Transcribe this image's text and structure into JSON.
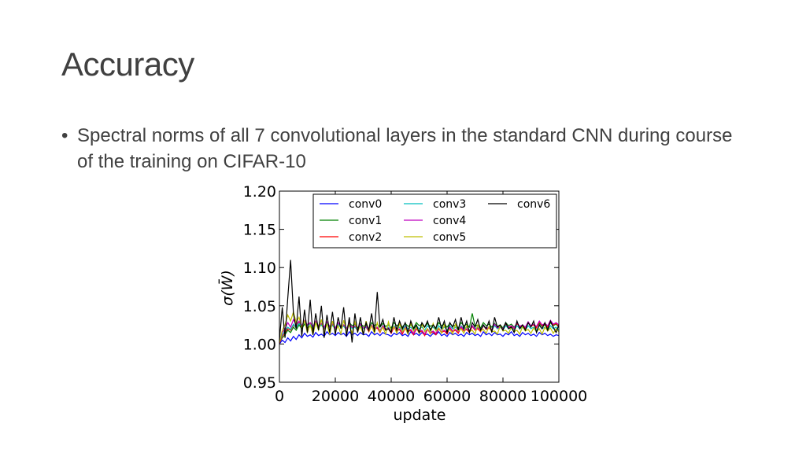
{
  "slide": {
    "title": "Accuracy",
    "bullet": "Spectral norms of all 7 convolutional layers in the standard CNN during course of the training on CIFAR-10"
  },
  "chart_data": {
    "type": "line",
    "xlabel": "update",
    "ylabel": "σ(W̄)",
    "xlim": [
      0,
      100000
    ],
    "ylim": [
      0.95,
      1.2
    ],
    "xticks": [
      "0",
      "20000",
      "40000",
      "60000",
      "80000",
      "100000"
    ],
    "yticks": [
      "0.95",
      "1.00",
      "1.05",
      "1.10",
      "1.15",
      "1.20"
    ],
    "grid": false,
    "legend_position": "top",
    "legend_columns": 3,
    "x": [
      0,
      1000,
      2000,
      3000,
      4000,
      5000,
      6000,
      7000,
      8000,
      9000,
      10000,
      11000,
      12000,
      13000,
      14000,
      15000,
      16000,
      17000,
      18000,
      19000,
      20000,
      21000,
      22000,
      23000,
      24000,
      25000,
      26000,
      27000,
      28000,
      29000,
      30000,
      31000,
      32000,
      33000,
      34000,
      35000,
      36000,
      37000,
      38000,
      39000,
      40000,
      41000,
      42000,
      43000,
      44000,
      45000,
      46000,
      47000,
      48000,
      49000,
      50000,
      51000,
      52000,
      53000,
      54000,
      55000,
      56000,
      57000,
      58000,
      59000,
      60000,
      61000,
      62000,
      63000,
      64000,
      65000,
      66000,
      67000,
      68000,
      69000,
      70000,
      71000,
      72000,
      73000,
      74000,
      75000,
      76000,
      77000,
      78000,
      79000,
      80000,
      81000,
      82000,
      83000,
      84000,
      85000,
      86000,
      87000,
      88000,
      89000,
      90000,
      91000,
      92000,
      93000,
      94000,
      95000,
      96000,
      97000,
      98000,
      99000,
      100000
    ],
    "series": [
      {
        "name": "conv0",
        "color": "#0000ff",
        "values": [
          1.0,
          1.005,
          1.002,
          1.008,
          1.004,
          1.01,
          1.006,
          1.012,
          1.008,
          1.014,
          1.01,
          1.012,
          1.009,
          1.015,
          1.011,
          1.013,
          1.01,
          1.016,
          1.012,
          1.014,
          1.011,
          1.015,
          1.012,
          1.014,
          1.01,
          1.016,
          1.012,
          1.014,
          1.011,
          1.015,
          1.012,
          1.013,
          1.01,
          1.016,
          1.012,
          1.014,
          1.011,
          1.015,
          1.013,
          1.012,
          1.01,
          1.014,
          1.012,
          1.015,
          1.011,
          1.013,
          1.01,
          1.016,
          1.012,
          1.014,
          1.011,
          1.015,
          1.012,
          1.013,
          1.01,
          1.014,
          1.012,
          1.016,
          1.011,
          1.013,
          1.01,
          1.015,
          1.012,
          1.014,
          1.011,
          1.013,
          1.01,
          1.015,
          1.012,
          1.014,
          1.011,
          1.013,
          1.01,
          1.016,
          1.012,
          1.014,
          1.011,
          1.015,
          1.012,
          1.013,
          1.01,
          1.014,
          1.012,
          1.016,
          1.011,
          1.013,
          1.01,
          1.015,
          1.012,
          1.014,
          1.011,
          1.013,
          1.01,
          1.015,
          1.012,
          1.014,
          1.011,
          1.013,
          1.01,
          1.012,
          1.011
        ]
      },
      {
        "name": "conv1",
        "color": "#008000",
        "values": [
          1.002,
          1.008,
          1.012,
          1.018,
          1.015,
          1.022,
          1.018,
          1.025,
          1.02,
          1.026,
          1.021,
          1.024,
          1.019,
          1.027,
          1.022,
          1.025,
          1.02,
          1.028,
          1.023,
          1.026,
          1.021,
          1.027,
          1.023,
          1.025,
          1.02,
          1.028,
          1.024,
          1.026,
          1.021,
          1.027,
          1.023,
          1.025,
          1.02,
          1.028,
          1.024,
          1.026,
          1.022,
          1.027,
          1.023,
          1.025,
          1.021,
          1.028,
          1.024,
          1.026,
          1.022,
          1.027,
          1.023,
          1.025,
          1.021,
          1.028,
          1.024,
          1.026,
          1.022,
          1.027,
          1.023,
          1.025,
          1.021,
          1.028,
          1.024,
          1.026,
          1.022,
          1.027,
          1.023,
          1.025,
          1.021,
          1.028,
          1.024,
          1.026,
          1.022,
          1.04,
          1.023,
          1.025,
          1.021,
          1.028,
          1.024,
          1.026,
          1.022,
          1.027,
          1.023,
          1.025,
          1.021,
          1.028,
          1.024,
          1.026,
          1.022,
          1.027,
          1.023,
          1.025,
          1.021,
          1.028,
          1.024,
          1.026,
          1.022,
          1.027,
          1.023,
          1.025,
          1.021,
          1.028,
          1.024,
          1.026,
          1.022
        ]
      },
      {
        "name": "conv2",
        "color": "#ff0000",
        "values": [
          1.001,
          1.01,
          1.015,
          1.02,
          1.018,
          1.025,
          1.021,
          1.028,
          1.022,
          1.03,
          1.024,
          1.027,
          1.021,
          1.029,
          1.023,
          1.026,
          1.02,
          1.028,
          1.022,
          1.025,
          1.019,
          1.027,
          1.022,
          1.024,
          1.018,
          1.026,
          1.021,
          1.023,
          1.017,
          1.025,
          1.02,
          1.022,
          1.016,
          1.024,
          1.019,
          1.021,
          1.015,
          1.023,
          1.018,
          1.02,
          1.014,
          1.022,
          1.017,
          1.019,
          1.013,
          1.021,
          1.016,
          1.018,
          1.012,
          1.02,
          1.015,
          1.017,
          1.011,
          1.019,
          1.014,
          1.016,
          1.012,
          1.02,
          1.015,
          1.017,
          1.013,
          1.021,
          1.016,
          1.018,
          1.014,
          1.022,
          1.017,
          1.019,
          1.015,
          1.023,
          1.018,
          1.02,
          1.016,
          1.024,
          1.019,
          1.021,
          1.017,
          1.025,
          1.02,
          1.022,
          1.018,
          1.026,
          1.021,
          1.023,
          1.019,
          1.027,
          1.022,
          1.024,
          1.02,
          1.028,
          1.023,
          1.025,
          1.021,
          1.029,
          1.024,
          1.026,
          1.022,
          1.03,
          1.025,
          1.027,
          1.023
        ]
      },
      {
        "name": "conv3",
        "color": "#00bfbf",
        "values": [
          1.003,
          1.012,
          1.017,
          1.022,
          1.019,
          1.026,
          1.021,
          1.027,
          1.023,
          1.029,
          1.024,
          1.026,
          1.022,
          1.028,
          1.023,
          1.025,
          1.021,
          1.027,
          1.022,
          1.024,
          1.02,
          1.026,
          1.021,
          1.023,
          1.019,
          1.025,
          1.02,
          1.022,
          1.018,
          1.024,
          1.02,
          1.022,
          1.018,
          1.024,
          1.02,
          1.022,
          1.018,
          1.024,
          1.02,
          1.022,
          1.018,
          1.024,
          1.02,
          1.022,
          1.018,
          1.024,
          1.02,
          1.022,
          1.018,
          1.024,
          1.02,
          1.022,
          1.018,
          1.024,
          1.02,
          1.022,
          1.018,
          1.024,
          1.02,
          1.022,
          1.018,
          1.024,
          1.02,
          1.022,
          1.018,
          1.024,
          1.02,
          1.022,
          1.018,
          1.024,
          1.02,
          1.022,
          1.018,
          1.024,
          1.02,
          1.022,
          1.018,
          1.024,
          1.02,
          1.022,
          1.018,
          1.024,
          1.02,
          1.022,
          1.018,
          1.024,
          1.02,
          1.022,
          1.018,
          1.024,
          1.02,
          1.022,
          1.018,
          1.024,
          1.02,
          1.022,
          1.018,
          1.024,
          1.02,
          1.022,
          1.018
        ]
      },
      {
        "name": "conv4",
        "color": "#bf00bf",
        "values": [
          1.004,
          1.015,
          1.02,
          1.028,
          1.022,
          1.032,
          1.025,
          1.03,
          1.024,
          1.031,
          1.025,
          1.028,
          1.023,
          1.03,
          1.024,
          1.027,
          1.022,
          1.029,
          1.023,
          1.026,
          1.021,
          1.028,
          1.022,
          1.025,
          1.02,
          1.027,
          1.022,
          1.024,
          1.019,
          1.026,
          1.021,
          1.023,
          1.018,
          1.025,
          1.02,
          1.022,
          1.017,
          1.024,
          1.019,
          1.021,
          1.016,
          1.023,
          1.018,
          1.02,
          1.015,
          1.022,
          1.017,
          1.019,
          1.014,
          1.021,
          1.016,
          1.018,
          1.013,
          1.02,
          1.015,
          1.017,
          1.014,
          1.021,
          1.016,
          1.018,
          1.015,
          1.022,
          1.017,
          1.019,
          1.016,
          1.023,
          1.018,
          1.02,
          1.017,
          1.024,
          1.019,
          1.021,
          1.018,
          1.025,
          1.02,
          1.022,
          1.019,
          1.026,
          1.021,
          1.023,
          1.02,
          1.027,
          1.022,
          1.024,
          1.021,
          1.028,
          1.023,
          1.025,
          1.022,
          1.029,
          1.024,
          1.026,
          1.023,
          1.03,
          1.025,
          1.027,
          1.024,
          1.031,
          1.026,
          1.028,
          1.025
        ]
      },
      {
        "name": "conv5",
        "color": "#bfbf00",
        "values": [
          1.002,
          1.018,
          1.025,
          1.038,
          1.03,
          1.042,
          1.028,
          1.035,
          1.022,
          1.03,
          1.015,
          1.025,
          1.012,
          1.028,
          1.018,
          1.032,
          1.015,
          1.026,
          1.012,
          1.03,
          1.016,
          1.024,
          1.013,
          1.031,
          1.017,
          1.025,
          1.014,
          1.029,
          1.016,
          1.023,
          1.013,
          1.03,
          1.017,
          1.024,
          1.014,
          1.028,
          1.016,
          1.022,
          1.013,
          1.029,
          1.017,
          1.023,
          1.014,
          1.027,
          1.016,
          1.021,
          1.013,
          1.028,
          1.017,
          1.022,
          1.014,
          1.026,
          1.016,
          1.02,
          1.013,
          1.027,
          1.017,
          1.021,
          1.014,
          1.025,
          1.016,
          1.019,
          1.013,
          1.026,
          1.017,
          1.02,
          1.014,
          1.024,
          1.016,
          1.018,
          1.013,
          1.025,
          1.017,
          1.019,
          1.014,
          1.023,
          1.016,
          1.017,
          1.013,
          1.024,
          1.017,
          1.018,
          1.014,
          1.022,
          1.016,
          1.018,
          1.013,
          1.023,
          1.017,
          1.019,
          1.014,
          1.021,
          1.016,
          1.02,
          1.013,
          1.022,
          1.017,
          1.021,
          1.014,
          1.02,
          1.016
        ]
      },
      {
        "name": "conv6",
        "color": "#000000",
        "values": [
          1.005,
          1.048,
          1.008,
          1.06,
          1.11,
          1.04,
          1.02,
          1.062,
          1.01,
          1.045,
          1.015,
          1.058,
          1.012,
          1.04,
          1.018,
          1.05,
          1.008,
          1.038,
          1.015,
          1.042,
          1.012,
          1.035,
          1.02,
          1.048,
          1.01,
          1.035,
          1.002,
          1.04,
          1.015,
          1.035,
          1.012,
          1.028,
          1.018,
          1.04,
          1.016,
          1.068,
          1.022,
          1.032,
          1.018,
          1.02,
          1.015,
          1.035,
          1.018,
          1.03,
          1.02,
          1.028,
          1.015,
          1.03,
          1.02,
          1.025,
          1.015,
          1.028,
          1.022,
          1.03,
          1.018,
          1.025,
          1.02,
          1.035,
          1.02,
          1.03,
          1.015,
          1.028,
          1.022,
          1.032,
          1.018,
          1.035,
          1.02,
          1.03,
          1.015,
          1.028,
          1.022,
          1.032,
          1.018,
          1.025,
          1.02,
          1.03,
          1.015,
          1.035,
          1.022,
          1.025,
          1.018,
          1.028,
          1.02,
          1.022,
          1.015,
          1.03,
          1.02,
          1.025,
          1.018,
          1.028,
          1.022,
          1.03,
          1.015,
          1.025,
          1.02,
          1.028,
          1.018,
          1.03,
          1.022,
          1.015,
          1.025
        ]
      }
    ]
  }
}
